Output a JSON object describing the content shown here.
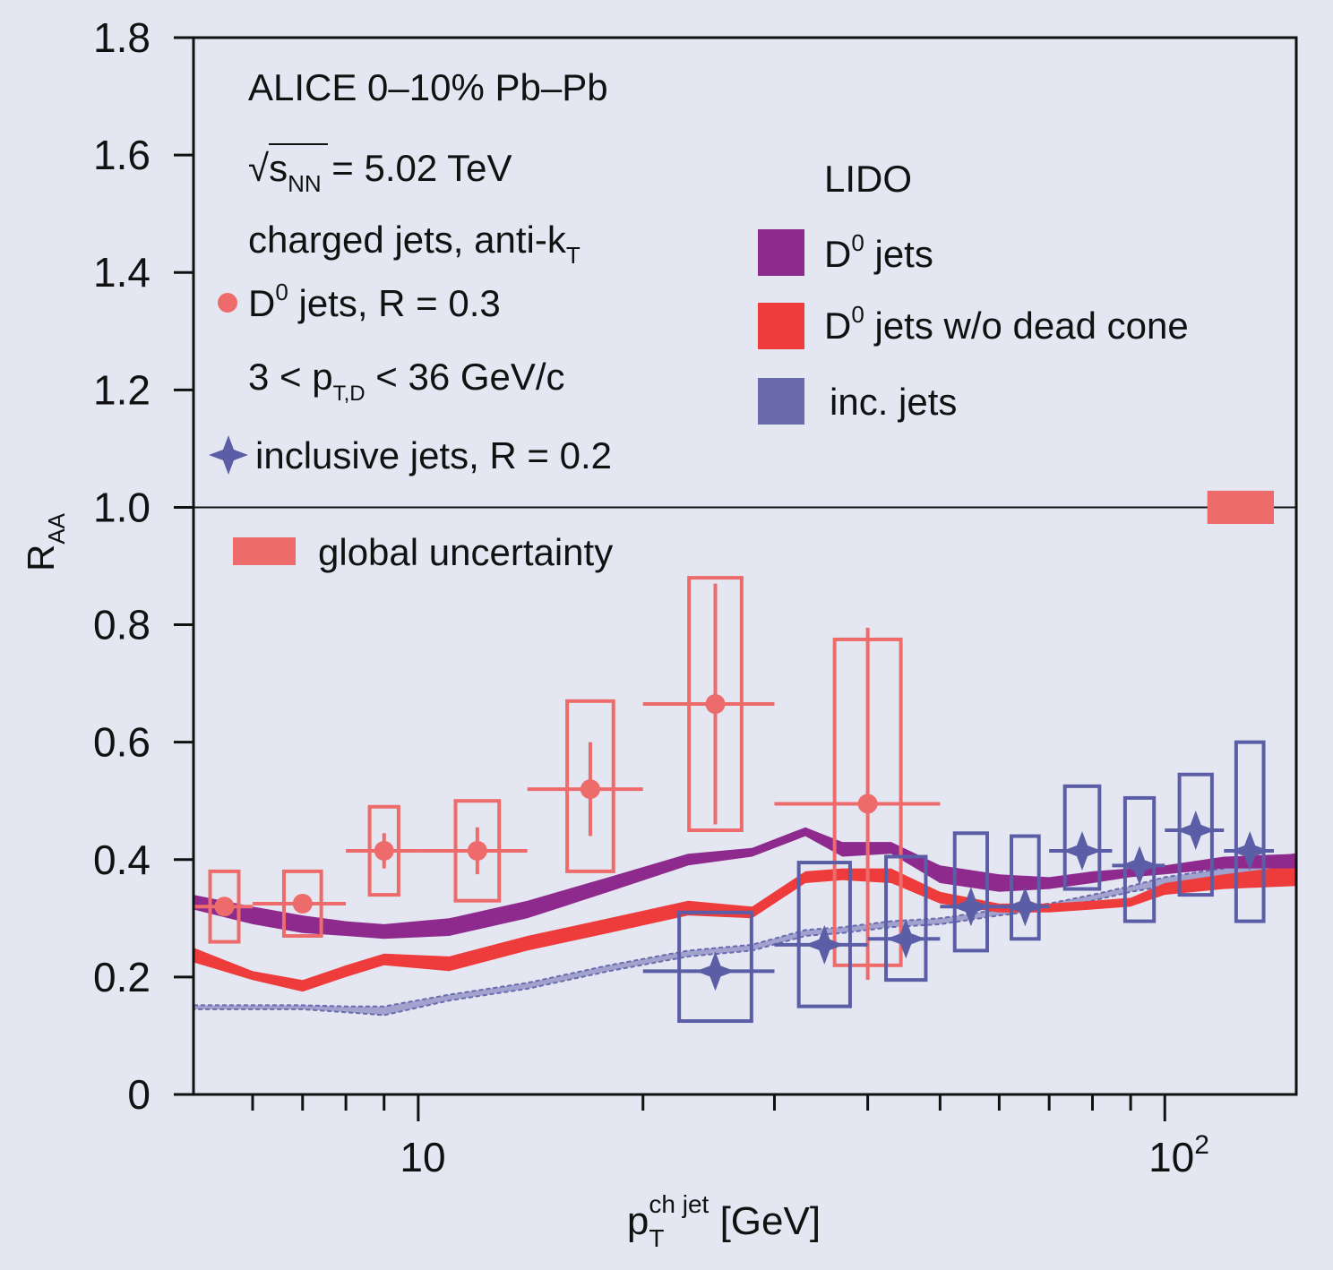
{
  "chart_data": {
    "type": "scatter",
    "x_scale": "log",
    "xlim": [
      5,
      150
    ],
    "ylim": [
      0,
      1.8
    ],
    "grid": false,
    "xlabel": {
      "base": "p",
      "sub": "T",
      "sup": "ch jet",
      "unit": " [GeV]"
    },
    "ylabel": {
      "base": "R",
      "sub": "AA"
    },
    "y_ticks": [
      "0",
      "0.2",
      "0.4",
      "0.6",
      "0.8",
      "1.0",
      "1.2",
      "1.4",
      "1.6",
      "1.8"
    ],
    "x_tick_10": "10",
    "x_tick_100": {
      "base": "10",
      "exp": "2"
    },
    "reference_line_y": 1.0,
    "colors": {
      "d0_data": "#ee6b6b",
      "inclusive_data": "#5b5ea6",
      "lido_d0": "#8e2a8e",
      "lido_no_dead_cone": "#ee3b3b",
      "lido_inclusive": "#6a6aae",
      "global_unc": "#ee6b6b"
    },
    "annotations": {
      "line1": "ALICE 0–10% Pb–Pb",
      "line2_sqrt": "√",
      "line2_s": "s",
      "line2_sub": "NN",
      "line2_rest": " = 5.02 TeV",
      "line3": "charged jets, anti-k",
      "line3_sub": "T",
      "d0_label_base": "D",
      "d0_label_sup": "0",
      "d0_label_rest": " jets, R = 0.3",
      "ptd_pre": "3 < p",
      "ptd_sub": "T,D",
      "ptd_post": " < 36 GeV/c",
      "inclusive_label": "inclusive jets, R = 0.2",
      "global_label": "global uncertainty"
    },
    "legend_lido": {
      "title": "LIDO",
      "d0_base": "D",
      "d0_sup": "0",
      "d0_rest": " jets",
      "ndc_base": "D",
      "ndc_sup": "0",
      "ndc_rest": " jets w/o dead cone",
      "inc": "inc. jets"
    },
    "series": [
      {
        "name": "D0 jets, R = 0.3",
        "points": [
          {
            "x": 5.5,
            "xlo": 5,
            "xhi": 6,
            "y": 0.32,
            "stat": 0,
            "syslo": 0.26,
            "syshi": 0.38
          },
          {
            "x": 7,
            "xlo": 6,
            "xhi": 8,
            "y": 0.325,
            "stat": 0,
            "syslo": 0.27,
            "syshi": 0.38
          },
          {
            "x": 9,
            "xlo": 8,
            "xhi": 10,
            "y": 0.415,
            "stat": 0.03,
            "syslo": 0.34,
            "syshi": 0.49
          },
          {
            "x": 12,
            "xlo": 10,
            "xhi": 14,
            "y": 0.415,
            "stat": 0.04,
            "syslo": 0.33,
            "syshi": 0.5
          },
          {
            "x": 17,
            "xlo": 14,
            "xhi": 20,
            "y": 0.52,
            "stat": 0.08,
            "syslo": 0.38,
            "syshi": 0.67
          },
          {
            "x": 25,
            "xlo": 20,
            "xhi": 30,
            "y": 0.665,
            "stat": 0.205,
            "syslo": 0.45,
            "syshi": 0.88
          },
          {
            "x": 40,
            "xlo": 30,
            "xhi": 50,
            "y": 0.495,
            "stat": 0.3,
            "syslo": 0.22,
            "syshi": 0.775
          }
        ]
      },
      {
        "name": "inclusive jets, R = 0.2",
        "points": [
          {
            "x": 25,
            "xlo": 20,
            "xhi": 30,
            "y": 0.21,
            "syslo": 0.125,
            "syshi": 0.31
          },
          {
            "x": 35,
            "xlo": 30,
            "xhi": 40,
            "y": 0.255,
            "syslo": 0.15,
            "syshi": 0.395
          },
          {
            "x": 45,
            "xlo": 40,
            "xhi": 50,
            "y": 0.265,
            "syslo": 0.195,
            "syshi": 0.405
          },
          {
            "x": 55,
            "xlo": 50,
            "xhi": 60,
            "y": 0.32,
            "syslo": 0.245,
            "syshi": 0.445
          },
          {
            "x": 65,
            "xlo": 60,
            "xhi": 70,
            "y": 0.32,
            "syslo": 0.265,
            "syshi": 0.44
          },
          {
            "x": 77.5,
            "xlo": 70,
            "xhi": 85,
            "y": 0.415,
            "syslo": 0.35,
            "syshi": 0.525
          },
          {
            "x": 92.5,
            "xlo": 85,
            "xhi": 100,
            "y": 0.39,
            "syslo": 0.295,
            "syshi": 0.505
          },
          {
            "x": 110,
            "xlo": 100,
            "xhi": 120,
            "y": 0.45,
            "syslo": 0.34,
            "syshi": 0.545
          },
          {
            "x": 130,
            "xlo": 120,
            "xhi": 140,
            "y": 0.415,
            "syslo": 0.295,
            "syshi": 0.6
          }
        ]
      }
    ],
    "bands": [
      {
        "name": "LIDO D0 jets",
        "x": [
          5,
          6,
          7,
          8,
          9,
          11,
          14,
          18,
          23,
          28,
          33,
          37,
          43,
          50,
          60,
          70,
          80,
          90,
          100,
          120,
          150
        ],
        "lo": [
          0.315,
          0.29,
          0.275,
          0.27,
          0.265,
          0.27,
          0.3,
          0.345,
          0.39,
          0.405,
          0.44,
          0.405,
          0.41,
          0.36,
          0.345,
          0.35,
          0.36,
          0.37,
          0.375,
          0.385,
          0.385
        ],
        "hi": [
          0.34,
          0.32,
          0.305,
          0.295,
          0.29,
          0.3,
          0.33,
          0.37,
          0.41,
          0.42,
          0.455,
          0.43,
          0.43,
          0.39,
          0.375,
          0.37,
          0.38,
          0.385,
          0.39,
          0.405,
          0.41
        ]
      },
      {
        "name": "LIDO D0 jets w/o dead cone",
        "x": [
          5,
          6,
          7,
          8,
          9,
          11,
          14,
          18,
          23,
          28,
          33,
          37,
          43,
          50,
          60,
          70,
          80,
          90,
          100,
          120,
          150
        ],
        "lo": [
          0.225,
          0.195,
          0.175,
          0.2,
          0.22,
          0.21,
          0.245,
          0.275,
          0.305,
          0.3,
          0.36,
          0.365,
          0.36,
          0.325,
          0.31,
          0.31,
          0.315,
          0.32,
          0.34,
          0.35,
          0.355
        ],
        "hi": [
          0.25,
          0.21,
          0.195,
          0.22,
          0.24,
          0.235,
          0.27,
          0.3,
          0.33,
          0.32,
          0.38,
          0.385,
          0.385,
          0.345,
          0.325,
          0.325,
          0.33,
          0.335,
          0.36,
          0.375,
          0.39
        ]
      },
      {
        "name": "LIDO inc. jets",
        "x": [
          5,
          6,
          7,
          8,
          9,
          11,
          14,
          18,
          23,
          28,
          33,
          37,
          43,
          50,
          60,
          70,
          80,
          90,
          100,
          120,
          150
        ],
        "lo": [
          0.145,
          0.145,
          0.145,
          0.14,
          0.135,
          0.16,
          0.18,
          0.21,
          0.235,
          0.245,
          0.27,
          0.275,
          0.285,
          0.29,
          0.305,
          0.315,
          0.33,
          0.345,
          0.355,
          0.37,
          0.39
        ],
        "hi": [
          0.152,
          0.152,
          0.152,
          0.15,
          0.15,
          0.17,
          0.19,
          0.22,
          0.245,
          0.255,
          0.28,
          0.285,
          0.295,
          0.3,
          0.315,
          0.325,
          0.34,
          0.355,
          0.37,
          0.385,
          0.41
        ]
      }
    ],
    "global_uncertainty": {
      "x": [
        114,
        140
      ],
      "ylo": 0.99,
      "yhi": 1.01
    }
  }
}
